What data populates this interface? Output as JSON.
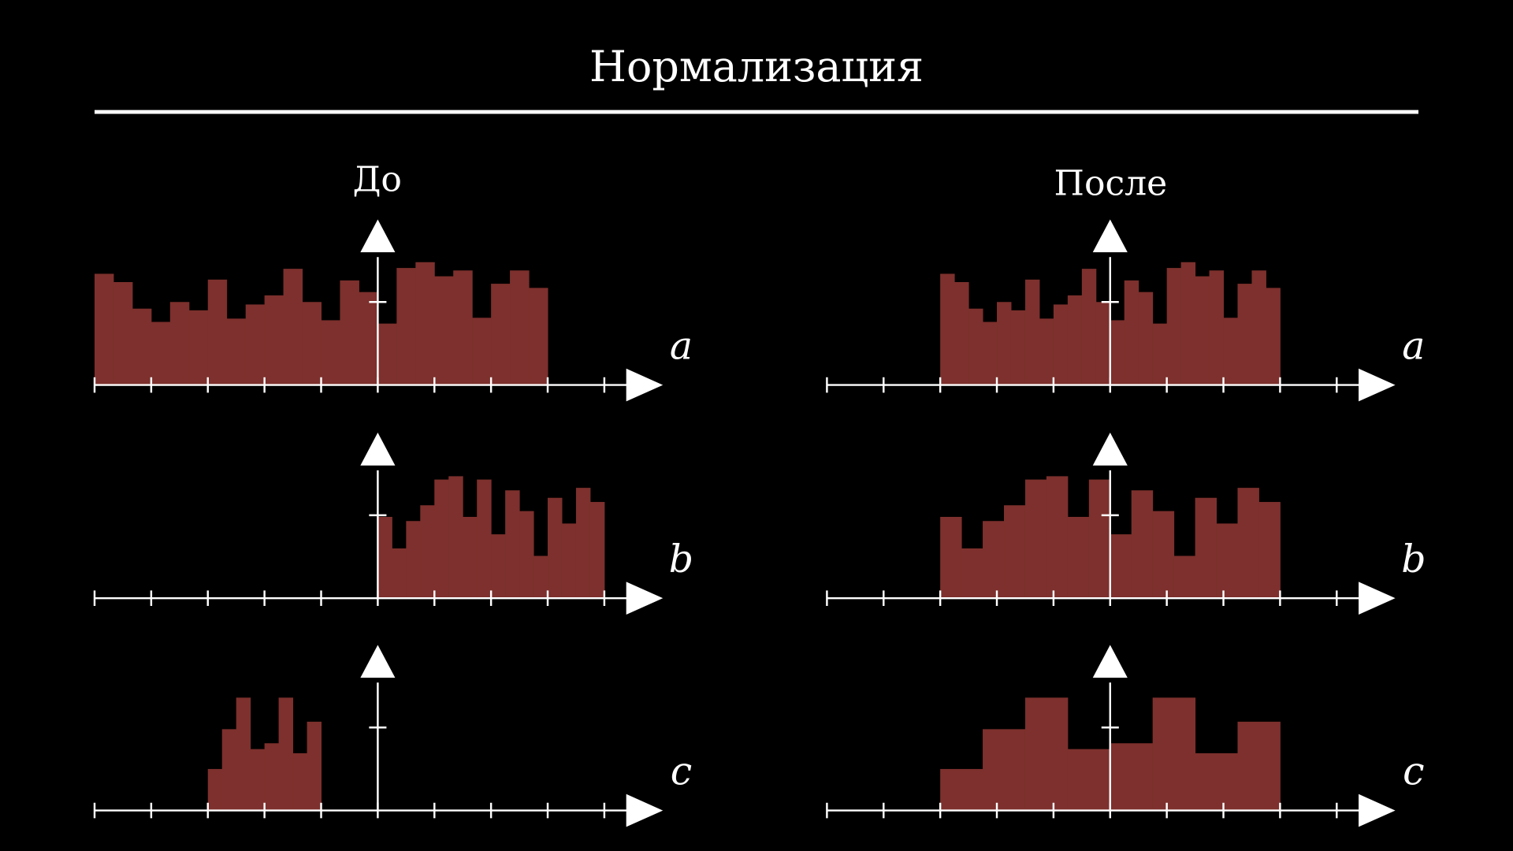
{
  "title": "Нормализация",
  "columns": [
    "До",
    "После"
  ],
  "chart_data": [
    {
      "type": "histogram",
      "label": "a",
      "color": "#7d302d",
      "xlim": [
        -5,
        5
      ],
      "ylim": [
        0,
        1.6
      ],
      "xticks": [
        -5,
        -4,
        -3,
        -2,
        -1,
        0,
        1,
        2,
        3,
        4
      ],
      "yticks": [
        1
      ],
      "bins": [
        -5,
        -4.667,
        -4.333,
        -4,
        -3.667,
        -3.333,
        -3,
        -2.667,
        -2.333,
        -2,
        -1.667,
        -1.333,
        -1,
        -0.667,
        -0.333,
        0,
        0.333,
        0.667,
        1,
        1.333,
        1.667,
        2,
        2.333,
        2.667,
        3
      ],
      "counts": [
        1.34,
        1.24,
        0.92,
        0.76,
        1.0,
        0.9,
        1.27,
        0.8,
        0.97,
        1.08,
        1.4,
        1.0,
        0.78,
        1.26,
        1.12,
        0.74,
        1.41,
        1.48,
        1.31,
        1.38,
        0.81,
        1.22,
        1.38,
        1.17
      ]
    },
    {
      "type": "histogram",
      "label": "a",
      "color": "#7d302d",
      "xlim": [
        -5,
        5
      ],
      "ylim": [
        0,
        1.6
      ],
      "xticks": [
        -5,
        -4,
        -3,
        -2,
        -1,
        0,
        1,
        2,
        3,
        4
      ],
      "yticks": [
        1
      ],
      "bins": [
        -3,
        -2.75,
        -2.5,
        -2.25,
        -2,
        -1.75,
        -1.5,
        -1.25,
        -1,
        -0.75,
        -0.5,
        -0.25,
        0,
        0.25,
        0.5,
        0.75,
        1,
        1.25,
        1.5,
        1.75,
        2,
        2.25,
        2.5,
        2.75,
        3
      ],
      "counts": [
        1.34,
        1.24,
        0.92,
        0.76,
        1.0,
        0.9,
        1.27,
        0.8,
        0.97,
        1.08,
        1.4,
        1.0,
        0.78,
        1.26,
        1.12,
        0.74,
        1.41,
        1.48,
        1.31,
        1.38,
        0.81,
        1.22,
        1.38,
        1.17
      ]
    },
    {
      "type": "histogram",
      "label": "b",
      "color": "#7d302d",
      "xlim": [
        -5,
        5
      ],
      "ylim": [
        0,
        1.6
      ],
      "xticks": [
        -5,
        -4,
        -3,
        -2,
        -1,
        0,
        1,
        2,
        3,
        4
      ],
      "yticks": [
        1
      ],
      "bins": [
        0,
        0.25,
        0.5,
        0.75,
        1,
        1.25,
        1.5,
        1.75,
        2,
        2.25,
        2.5,
        2.75,
        3,
        3.25,
        3.5,
        3.75,
        4
      ],
      "counts": [
        0.98,
        0.6,
        0.93,
        1.12,
        1.43,
        1.47,
        0.98,
        1.43,
        0.77,
        1.3,
        1.05,
        0.51,
        1.21,
        0.9,
        1.33,
        1.16
      ]
    },
    {
      "type": "histogram",
      "label": "b",
      "color": "#7d302d",
      "xlim": [
        -5,
        5
      ],
      "ylim": [
        0,
        1.6
      ],
      "xticks": [
        -5,
        -4,
        -3,
        -2,
        -1,
        0,
        1,
        2,
        3,
        4
      ],
      "yticks": [
        1
      ],
      "bins": [
        -3,
        -2.625,
        -2.25,
        -1.875,
        -1.5,
        -1.125,
        -0.75,
        -0.375,
        0,
        0.375,
        0.75,
        1.125,
        1.5,
        1.875,
        2.25,
        2.625,
        3
      ],
      "counts": [
        0.98,
        0.6,
        0.93,
        1.12,
        1.43,
        1.47,
        0.98,
        1.43,
        0.77,
        1.3,
        1.05,
        0.51,
        1.21,
        0.9,
        1.33,
        1.16
      ]
    },
    {
      "type": "histogram",
      "label": "c",
      "color": "#7d302d",
      "xlim": [
        -5,
        5
      ],
      "ylim": [
        0,
        1.6
      ],
      "xticks": [
        -5,
        -4,
        -3,
        -2,
        -1,
        0,
        1,
        2,
        3,
        4
      ],
      "yticks": [
        1
      ],
      "bins": [
        -3,
        -2.75,
        -2.5,
        -2.25,
        -2,
        -1.75,
        -1.5,
        -1.25,
        -1
      ],
      "counts": [
        0.5,
        0.98,
        1.36,
        0.74,
        0.81,
        1.36,
        0.69,
        1.07
      ]
    },
    {
      "type": "histogram",
      "label": "c",
      "color": "#7d302d",
      "xlim": [
        -5,
        5
      ],
      "ylim": [
        0,
        1.6
      ],
      "xticks": [
        -5,
        -4,
        -3,
        -2,
        -1,
        0,
        1,
        2,
        3,
        4
      ],
      "yticks": [
        1
      ],
      "bins": [
        -3,
        -2.25,
        -1.5,
        -0.75,
        0,
        0.75,
        1.5,
        2.25,
        3
      ],
      "counts": [
        0.5,
        0.98,
        1.36,
        0.74,
        0.81,
        1.36,
        0.69,
        1.07
      ]
    }
  ]
}
